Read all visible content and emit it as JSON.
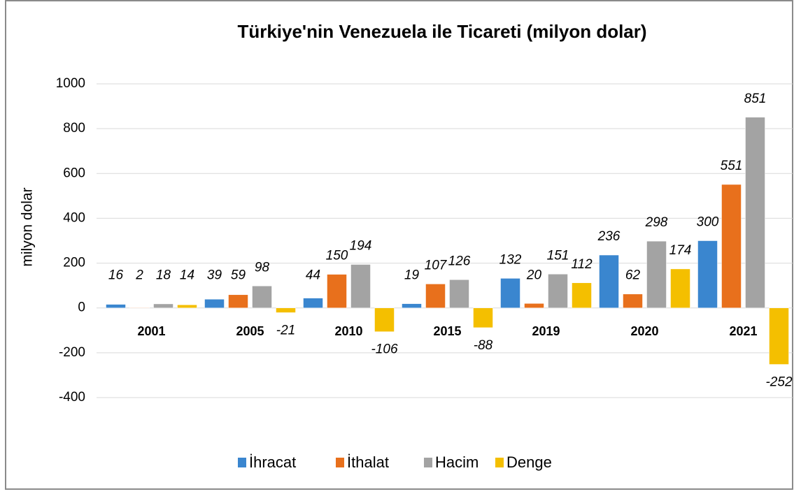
{
  "chart_data": {
    "type": "bar",
    "title": "Türkiye'nin Venezuela ile Ticareti (milyon dolar)",
    "y_label": "milyon dolar",
    "categories": [
      "2001",
      "2005",
      "2010",
      "2015",
      "2019",
      "2020",
      "2021"
    ],
    "series": [
      {
        "name": "İhracat",
        "color": "#3a86cf",
        "values": [
          16,
          39,
          44,
          19,
          132,
          236,
          300
        ]
      },
      {
        "name": "İthalat",
        "color": "#e8701c",
        "values": [
          2,
          59,
          150,
          107,
          20,
          62,
          551
        ]
      },
      {
        "name": "Hacim",
        "color": "#a3a3a3",
        "values": [
          18,
          98,
          194,
          126,
          151,
          298,
          851
        ]
      },
      {
        "name": "Denge",
        "color": "#f4bf00",
        "values": [
          14,
          -21,
          -106,
          -88,
          112,
          174,
          -252
        ]
      }
    ],
    "ylim": [
      -400,
      1000
    ],
    "yticks": [
      -400,
      -200,
      0,
      200,
      400,
      600,
      800,
      1000
    ],
    "grid": true,
    "legend": "bottom"
  }
}
